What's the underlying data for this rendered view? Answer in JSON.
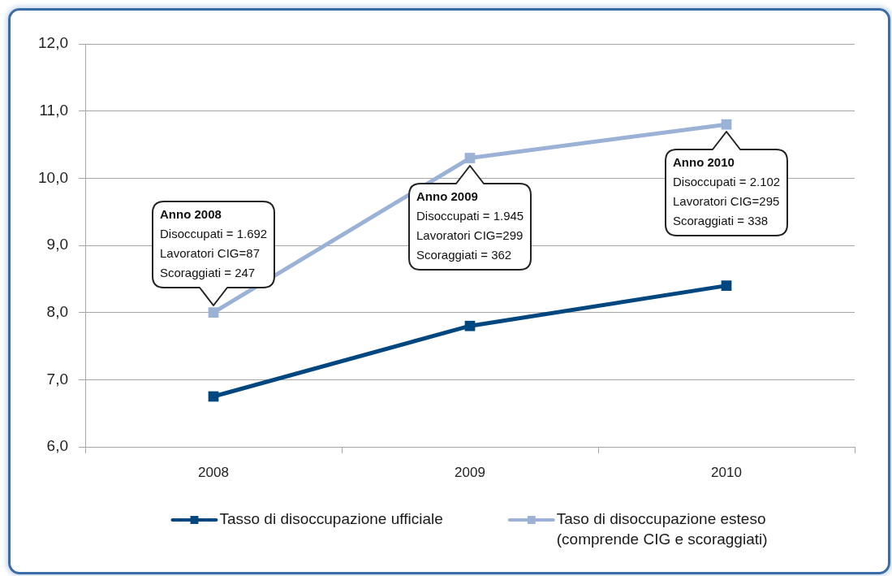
{
  "chart_data": {
    "type": "line",
    "categories": [
      "2008",
      "2009",
      "2010"
    ],
    "series": [
      {
        "name": "Tasso di disoccupazione ufficiale",
        "color": "#00467f",
        "values": [
          6.75,
          7.8,
          8.4
        ]
      },
      {
        "name": "Taso di disoccupazione esteso (comprende CIG e scoraggiati)",
        "color": "#9bb1d6",
        "values": [
          8.0,
          10.3,
          10.8
        ]
      }
    ],
    "ylim": [
      6,
      12
    ],
    "yticks": [
      {
        "value": 6,
        "label": "6,0"
      },
      {
        "value": 7,
        "label": "7,0"
      },
      {
        "value": 8,
        "label": "8,0"
      },
      {
        "value": 9,
        "label": "9,0"
      },
      {
        "value": 10,
        "label": "10,0"
      },
      {
        "value": 11,
        "label": "11,0"
      },
      {
        "value": 12,
        "label": "12,0"
      }
    ],
    "grid": "y",
    "legend": "bottom",
    "marker": "square",
    "line_style": "solid",
    "annotations": [
      {
        "text": "Anno 2008\nDisoccupati = 1.692\nLavoratori CIG=87\nScoraggiati = 247",
        "x": "2008",
        "y": 8.0
      },
      {
        "text": "Anno 2009\nDisoccupati = 1.945\nLavoratori CIG=299\nScoraggiati = 362",
        "x": "2009",
        "y": 10.3
      },
      {
        "text": "Anno 2010\nDisoccupati = 2.102\nLavoratori CIG=295\nScoraggiati = 338",
        "x": "2010",
        "y": 10.8
      }
    ]
  }
}
